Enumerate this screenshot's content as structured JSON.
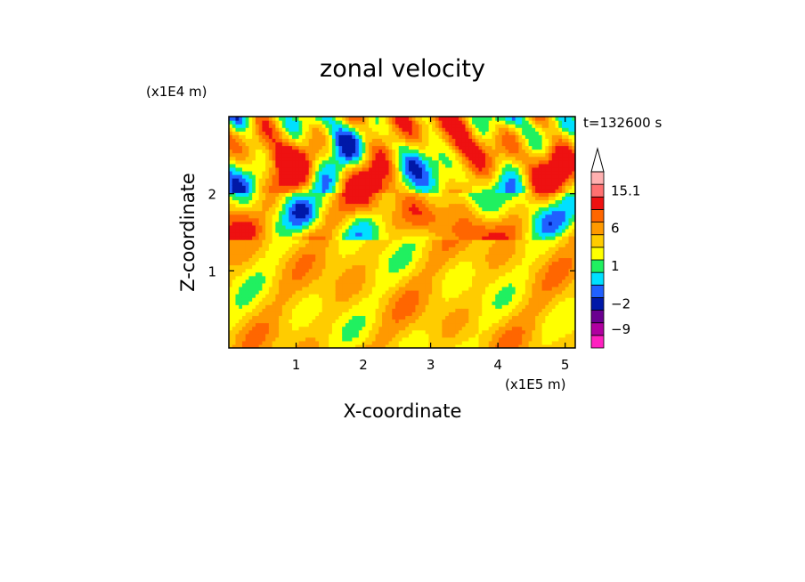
{
  "chart_data": {
    "type": "heatmap",
    "title": "zonal velocity",
    "xlabel": "X-coordinate",
    "ylabel": "Z-coordinate",
    "x_scale_label": "(x1E5 m)",
    "y_scale_label": "(x1E4 m)",
    "time_label": "t=132600 s",
    "xlim": [
      0,
      5.15
    ],
    "ylim": [
      0,
      3.0
    ],
    "x_ticks": [
      1,
      2,
      3,
      4,
      5
    ],
    "y_ticks": [
      1,
      2
    ],
    "colorbar": {
      "levels": [
        {
          "color": "#ff20c0",
          "label": ""
        },
        {
          "color": "#b000a0",
          "label": "-9"
        },
        {
          "color": "#6a0090",
          "label": ""
        },
        {
          "color": "#0018a8",
          "label": "-2"
        },
        {
          "color": "#2060ff",
          "label": ""
        },
        {
          "color": "#00e0ff",
          "label": ""
        },
        {
          "color": "#20f060",
          "label": "1"
        },
        {
          "color": "#ffff00",
          "label": ""
        },
        {
          "color": "#ffcc00",
          "label": ""
        },
        {
          "color": "#ff9900",
          "label": "6"
        },
        {
          "color": "#ff6600",
          "label": ""
        },
        {
          "color": "#ee1111",
          "label": ""
        },
        {
          "color": "#ff7070",
          "label": "15.1"
        },
        {
          "color": "#ffb0b0",
          "label": ""
        }
      ],
      "extend_top": true
    },
    "field_color_scale": [
      "#0018a8",
      "#2060ff",
      "#00e0ff",
      "#20f060",
      "#ffff00",
      "#ffcc00",
      "#ff9900",
      "#ff6600",
      "#ee1111"
    ]
  }
}
